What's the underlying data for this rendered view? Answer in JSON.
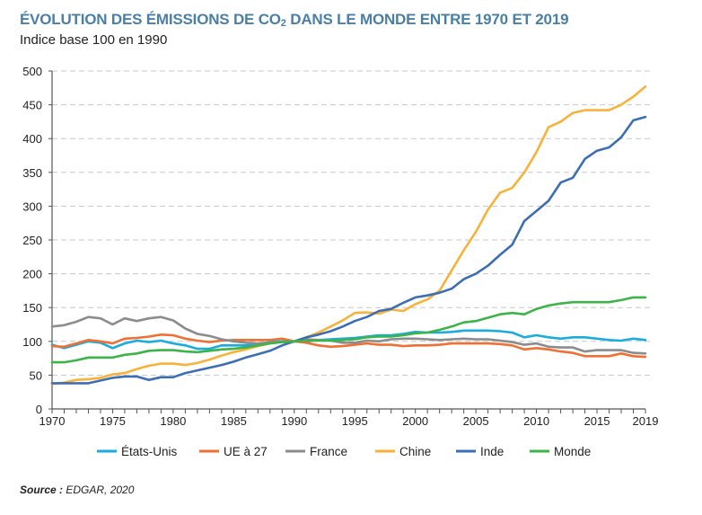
{
  "header": {
    "title_part1": "ÉVOLUTION DES ÉMISSIONS DE CO",
    "title_sub": "2",
    "title_part2": " DANS LE MONDE ENTRE 1970 ET 2019",
    "subtitle": "Indice base 100 en 1990"
  },
  "footer": {
    "source_label": "Source :",
    "source_value": " EDGAR, 2020"
  },
  "chart_data": {
    "type": "line",
    "title": "ÉVOLUTION DES ÉMISSIONS DE CO2 DANS LE MONDE ENTRE 1970 ET 2019",
    "subtitle": "Indice base 100 en 1990",
    "xlabel": "",
    "ylabel": "",
    "xlim": [
      1970,
      2019
    ],
    "ylim": [
      0,
      500
    ],
    "y_ticks": [
      0,
      50,
      100,
      150,
      200,
      250,
      300,
      350,
      400,
      450,
      500
    ],
    "x_tick_labels": [
      "1970",
      "1975",
      "1980",
      "1985",
      "1990",
      "1995",
      "2000",
      "2005",
      "2010",
      "2015",
      "2019"
    ],
    "grid": "horizontal dashed",
    "legend_position": "bottom",
    "x": [
      1970,
      1971,
      1972,
      1973,
      1974,
      1975,
      1976,
      1977,
      1978,
      1979,
      1980,
      1981,
      1982,
      1983,
      1984,
      1985,
      1986,
      1987,
      1988,
      1989,
      1990,
      1991,
      1992,
      1993,
      1994,
      1995,
      1996,
      1997,
      1998,
      1999,
      2000,
      2001,
      2002,
      2003,
      2004,
      2005,
      2006,
      2007,
      2008,
      2009,
      2010,
      2011,
      2012,
      2013,
      2014,
      2015,
      2016,
      2017,
      2018,
      2019
    ],
    "series": [
      {
        "name": "États-Unis",
        "color": "#1aabdf",
        "values": [
          95,
          90,
          95,
          100,
          98,
          90,
          97,
          101,
          99,
          101,
          97,
          94,
          89,
          89,
          94,
          94,
          94,
          96,
          99,
          100,
          100,
          100,
          102,
          103,
          104,
          105,
          107,
          109,
          109,
          111,
          114,
          113,
          113,
          114,
          116,
          116,
          116,
          115,
          113,
          106,
          109,
          106,
          104,
          106,
          106,
          104,
          102,
          101,
          104,
          102
        ]
      },
      {
        "name": "UE à 27",
        "color": "#f07034",
        "values": [
          93,
          92,
          97,
          102,
          100,
          97,
          104,
          105,
          107,
          110,
          109,
          104,
          101,
          99,
          101,
          102,
          102,
          102,
          102,
          104,
          100,
          98,
          94,
          92,
          93,
          95,
          97,
          95,
          95,
          93,
          94,
          94,
          95,
          97,
          97,
          97,
          97,
          96,
          94,
          88,
          90,
          88,
          85,
          83,
          78,
          78,
          78,
          82,
          78,
          77
        ]
      },
      {
        "name": "France",
        "color": "#8a8c8d",
        "values": [
          122,
          124,
          129,
          136,
          134,
          125,
          134,
          130,
          134,
          136,
          131,
          119,
          111,
          108,
          103,
          100,
          98,
          97,
          98,
          99,
          100,
          103,
          102,
          101,
          98,
          98,
          101,
          100,
          103,
          104,
          104,
          103,
          102,
          103,
          104,
          103,
          103,
          101,
          99,
          95,
          97,
          92,
          91,
          91,
          85,
          87,
          87,
          87,
          83,
          82
        ]
      },
      {
        "name": "Chine",
        "color": "#f8b23a",
        "values": [
          37,
          39,
          43,
          44,
          46,
          51,
          53,
          59,
          64,
          67,
          67,
          65,
          68,
          73,
          79,
          84,
          88,
          93,
          97,
          99,
          100,
          106,
          113,
          122,
          131,
          142,
          143,
          141,
          147,
          145,
          155,
          162,
          175,
          205,
          235,
          262,
          295,
          320,
          327,
          350,
          380,
          417,
          425,
          438,
          442,
          442,
          442,
          450,
          462,
          477
        ]
      },
      {
        "name": "Inde",
        "color": "#3c6eb4",
        "values": [
          38,
          38,
          38,
          38,
          42,
          46,
          48,
          48,
          43,
          47,
          47,
          53,
          57,
          61,
          65,
          70,
          76,
          81,
          86,
          94,
          100,
          106,
          110,
          115,
          122,
          130,
          136,
          145,
          148,
          157,
          165,
          168,
          172,
          178,
          192,
          200,
          212,
          228,
          243,
          278,
          293,
          308,
          335,
          342,
          370,
          382,
          387,
          402,
          427,
          432
        ]
      },
      {
        "name": "Monde",
        "color": "#3cb44a",
        "values": [
          69,
          69,
          72,
          76,
          76,
          76,
          80,
          82,
          86,
          87,
          87,
          85,
          84,
          86,
          88,
          89,
          91,
          94,
          97,
          99,
          100,
          101,
          101,
          101,
          102,
          103,
          106,
          107,
          107,
          109,
          112,
          113,
          117,
          122,
          128,
          130,
          135,
          140,
          142,
          140,
          148,
          153,
          156,
          158,
          158,
          158,
          158,
          161,
          165,
          165
        ]
      }
    ]
  }
}
